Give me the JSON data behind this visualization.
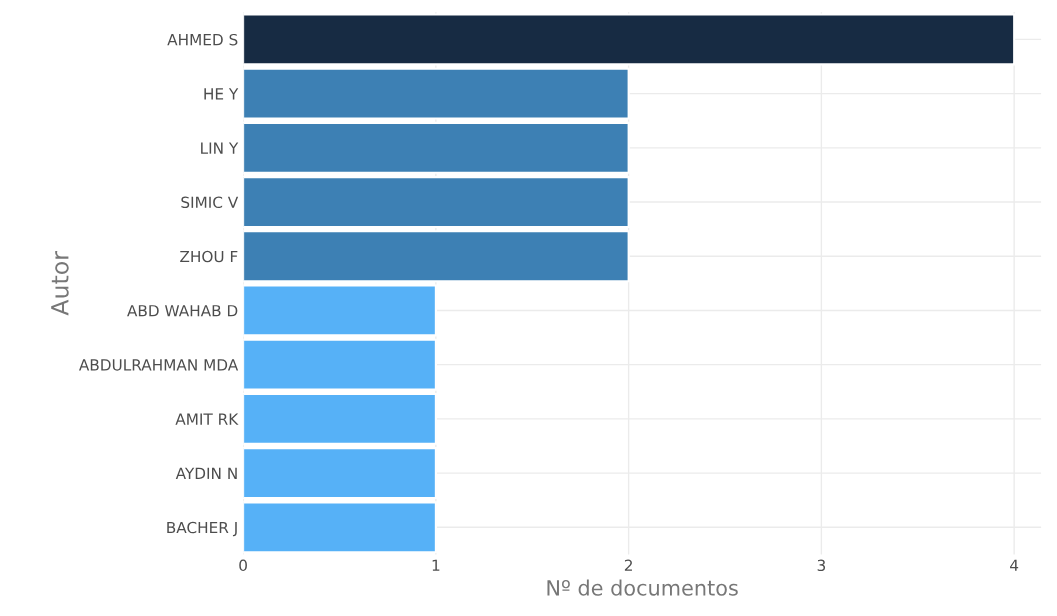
{
  "chart_data": {
    "type": "bar",
    "orientation": "horizontal",
    "categories": [
      "AHMED S",
      "HE Y",
      "LIN Y",
      "SIMIC V",
      "ZHOU F",
      "ABD WAHAB D",
      "ABDULRAHMAN MDA",
      "AMIT RK",
      "AYDIN N",
      "BACHER J"
    ],
    "values": [
      4,
      2,
      2,
      2,
      2,
      1,
      1,
      1,
      1,
      1
    ],
    "colors": [
      "#172b43",
      "#3d80b4",
      "#3d80b4",
      "#3d80b4",
      "#3d80b4",
      "#56b1f7",
      "#56b1f7",
      "#56b1f7",
      "#56b1f7",
      "#56b1f7"
    ],
    "xlabel": "Nº de documentos",
    "ylabel": "Autor",
    "xlim": [
      0,
      4.14
    ],
    "xticks": [
      0,
      1,
      2,
      3,
      4
    ],
    "grid": true
  }
}
